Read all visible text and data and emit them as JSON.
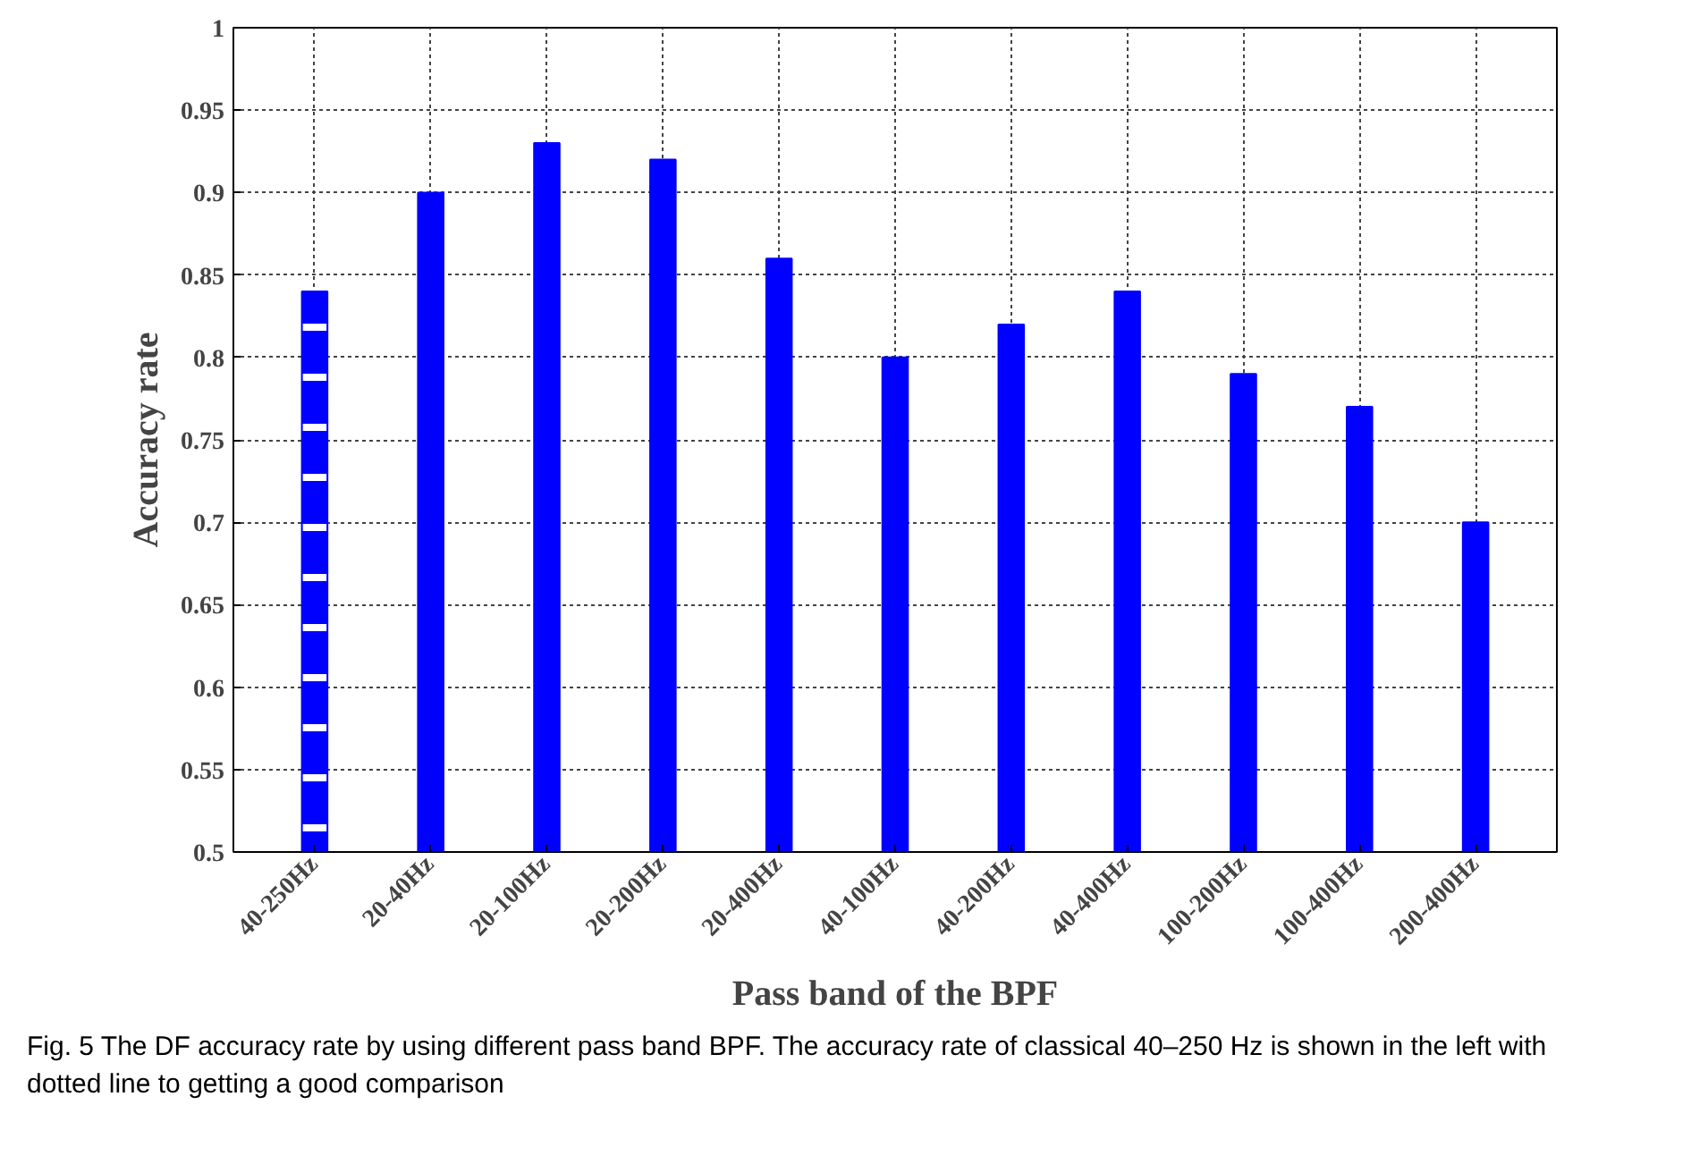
{
  "chart_data": {
    "type": "bar",
    "xlabel": "Pass band of the BPF",
    "ylabel": "Accuracy rate",
    "categories": [
      "40-250Hz",
      "20-40Hz",
      "20-100Hz",
      "20-200Hz",
      "20-400Hz",
      "40-100Hz",
      "40-200Hz",
      "40-400Hz",
      "100-200Hz",
      "100-400Hz",
      "200-400Hz"
    ],
    "series": [
      {
        "color": "#0000ff",
        "line_style": "dashed",
        "values": [
          0.84,
          null,
          null,
          null,
          null,
          null,
          null,
          null,
          null,
          null,
          null
        ]
      },
      {
        "color": "#0000ff",
        "line_style": "solid",
        "values": [
          null,
          0.9,
          0.93,
          0.92,
          0.86,
          0.8,
          0.82,
          0.84,
          0.79,
          0.77,
          0.7
        ]
      }
    ],
    "ylim": [
      0.5,
      1
    ],
    "yticks": [
      0.5,
      0.55,
      0.6,
      0.65,
      0.7,
      0.75,
      0.8,
      0.85,
      0.9,
      0.95,
      1
    ],
    "grid": true,
    "annotations": [
      "Fig. 5 The DF accuracy rate by using different pass band BPF. The accuracy rate of classical 40–250 Hz is shown in the left with dotted line to getting a good comparison"
    ]
  }
}
